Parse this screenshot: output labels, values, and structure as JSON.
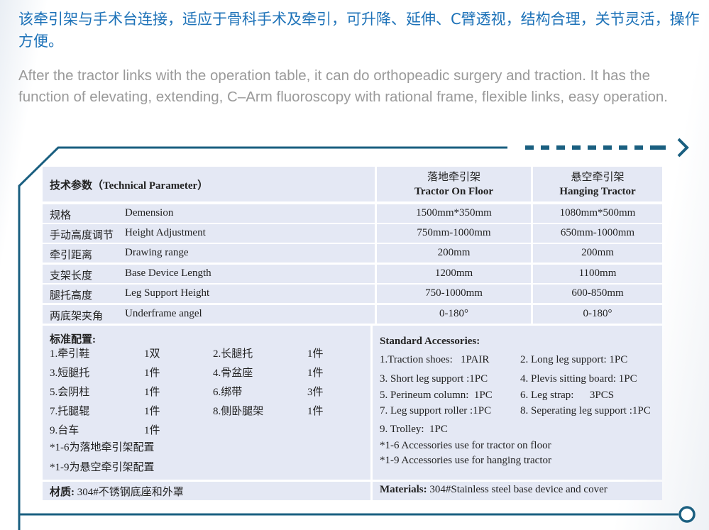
{
  "intro": {
    "zh": "该牵引架与手术台连接，适应于骨科手术及牵引，可升降、延伸、C臂透视，结构合理，关节灵活，操作方便。",
    "en": "After the tractor links with the operation table, it can do orthopeadic surgery and traction. It has the function of elevating, extending, C–Arm fluoroscopy with rational frame, flexible links, easy operation."
  },
  "colors": {
    "title": "#1d72b8",
    "frame": "#1a5f80",
    "cell": "#e4e8f4"
  },
  "table": {
    "header": {
      "param": "技术参数（Technical Parameter）",
      "col1_zh": "落地牵引架",
      "col1_en": "Tractor On Floor",
      "col2_zh": "悬空牵引架",
      "col2_en": "Hanging Tractor"
    },
    "rows": [
      {
        "zh": "规格",
        "en": "Demension",
        "floor": "1500mm*350mm",
        "hanging": "1080mm*500mm"
      },
      {
        "zh": "手动高度调节",
        "en": "Height Adjustment",
        "floor": "750mm-1000mm",
        "hanging": "650mm-1000mm"
      },
      {
        "zh": "牵引距离",
        "en": "Drawing range",
        "floor": "200mm",
        "hanging": "200mm"
      },
      {
        "zh": "支架长度",
        "en": "Base Device Length",
        "floor": "1200mm",
        "hanging": "1100mm"
      },
      {
        "zh": "腿托高度",
        "en": "Leg Support Height",
        "floor": "750-1000mm",
        "hanging": "600-850mm"
      },
      {
        "zh": "两底架夹角",
        "en": "Underframe angel",
        "floor": "0-180°",
        "hanging": "0-180°"
      }
    ]
  },
  "accessories_zh": {
    "title": "标准配置:",
    "items": [
      {
        "name": "1.牵引鞋",
        "qty": "1双"
      },
      {
        "name": "2.长腿托",
        "qty": "1件"
      },
      {
        "name": "3.短腿托",
        "qty": "1件"
      },
      {
        "name": "4.骨盆座",
        "qty": "1件"
      },
      {
        "name": "5.会阴柱",
        "qty": "1件"
      },
      {
        "name": "6.绑带",
        "qty": "3件"
      },
      {
        "name": "7.托腿辊",
        "qty": "1件"
      },
      {
        "name": "8.侧卧腿架",
        "qty": "1件"
      },
      {
        "name": "9.台车",
        "qty": "1件"
      }
    ],
    "notes": [
      "*1-6为落地牵引架配置",
      "*1-9为悬空牵引架配置"
    ],
    "materials_label": "材质:",
    "materials": " 304#不锈钢底座和外罩"
  },
  "accessories_en": {
    "title": "Standard Accessories:",
    "items": [
      "1.Traction shoes:   1PAIR",
      "2. Long leg support: 1PC",
      "3. Short leg support :1PC",
      "4. Plevis sitting board: 1PC",
      "5. Perineum column:  1PC",
      "6. Leg strap:      3PCS",
      "7. Leg support roller :1PC",
      "8. Seperating leg support :1PC",
      "9. Trolley:  1PC"
    ],
    "notes": [
      "*1-6 Accessories use for tractor on floor",
      "*1-9 Accessories use for hanging tractor"
    ],
    "materials_label": "Materials:",
    "materials": " 304#Stainless steel base device and cover"
  }
}
